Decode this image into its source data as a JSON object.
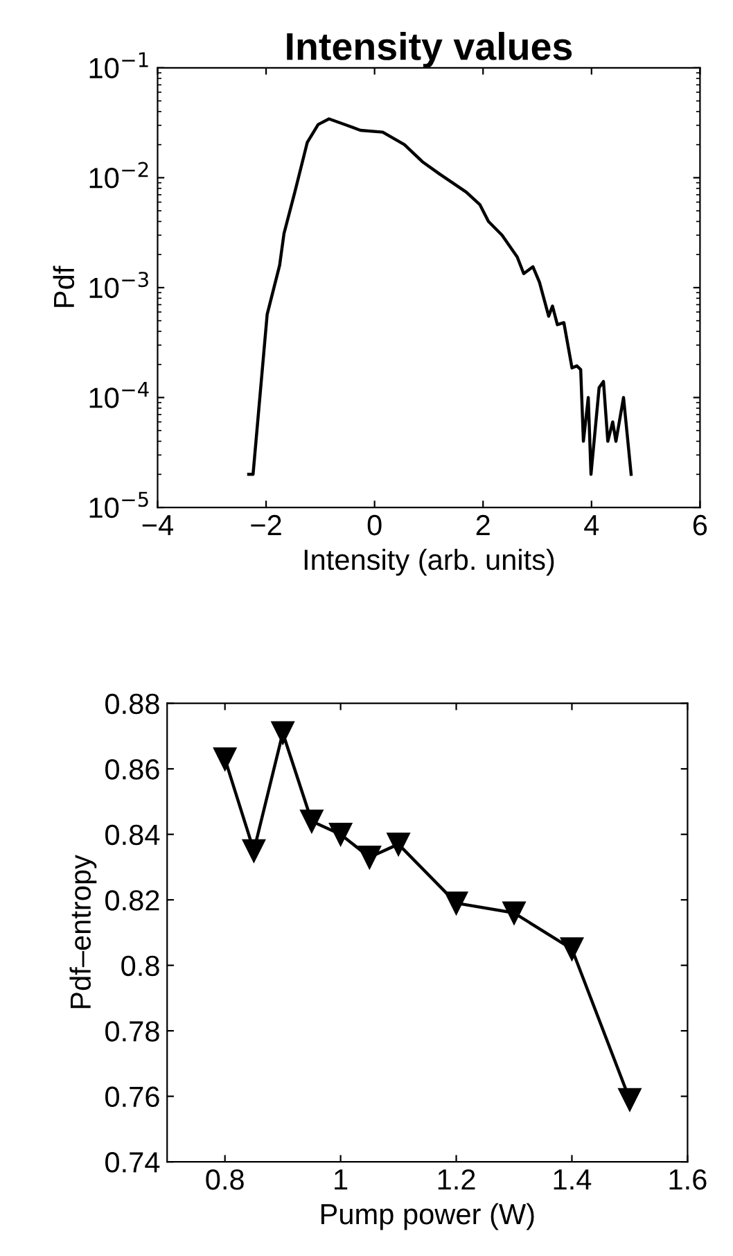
{
  "chart_data": [
    {
      "type": "line",
      "title": "Intensity values",
      "xlabel": "Intensity (arb. units)",
      "ylabel": "Pdf",
      "log": "y",
      "grid": false,
      "marker": "none",
      "line_style": "solid",
      "xlim": [
        -4,
        6
      ],
      "xticks": [
        {
          "value": -4,
          "label": "−4"
        },
        {
          "value": -2,
          "label": "−2"
        },
        0,
        2,
        4,
        6
      ],
      "ylim": [
        1e-05,
        0.1
      ],
      "yticks": [
        {
          "value": 1e-05,
          "label": "10$^{−5}$"
        },
        {
          "value": 0.0001,
          "label": "10$^{−4}$"
        },
        {
          "value": 0.001,
          "label": "10$^{−3}$"
        },
        {
          "value": 0.01,
          "label": "10$^{−2}$"
        },
        {
          "value": 0.1,
          "label": "10$^{−1}$"
        }
      ],
      "series": [
        {
          "color": "#000000",
          "x": [
            -2.32,
            -2.24,
            -1.98,
            -1.75,
            -1.67,
            -1.47,
            -1.24,
            -1.04,
            -0.84,
            -0.51,
            -0.26,
            0.15,
            0.55,
            0.88,
            1.2,
            1.69,
            1.94,
            2.1,
            2.35,
            2.63,
            2.75,
            2.92,
            3.04,
            3.21,
            3.28,
            3.37,
            3.49,
            3.64,
            3.73,
            3.8,
            3.85,
            3.94,
            3.99,
            4.14,
            4.22,
            4.3,
            4.39,
            4.45,
            4.59,
            4.73
          ],
          "values": [
            2e-05,
            2e-05,
            0.00057,
            0.0016,
            0.0031,
            0.0074,
            0.021,
            0.0305,
            0.0343,
            0.03,
            0.027,
            0.026,
            0.02,
            0.014,
            0.0108,
            0.0074,
            0.0057,
            0.004,
            0.003,
            0.0019,
            0.00134,
            0.00155,
            0.00112,
            0.00055,
            0.00068,
            0.00046,
            0.00048,
            0.000186,
            0.000194,
            0.00018,
            4e-05,
            0.0001,
            2e-05,
            0.000123,
            0.00014,
            4e-05,
            6e-05,
            4e-05,
            0.0001,
            2e-05
          ]
        }
      ]
    },
    {
      "type": "line",
      "xlabel": "Pump power (W)",
      "ylabel": "Pdf–entropy",
      "grid": false,
      "marker": "triangle",
      "line_style": "solid",
      "xlim": [
        0.7,
        1.6
      ],
      "xticks": [
        0.8,
        1,
        1.2,
        1.4,
        1.6
      ],
      "ylim": [
        0.74,
        0.88
      ],
      "yticks": [
        0.74,
        0.76,
        0.78,
        0.8,
        0.82,
        0.84,
        0.86,
        0.88
      ],
      "series": [
        {
          "color": "#000000",
          "x": [
            0.8,
            0.85,
            0.9,
            0.95,
            1.0,
            1.05,
            1.1,
            1.2,
            1.3,
            1.4,
            1.5
          ],
          "values": [
            0.863,
            0.835,
            0.871,
            0.844,
            0.84,
            0.833,
            0.837,
            0.819,
            0.816,
            0.805,
            0.759
          ]
        }
      ]
    }
  ]
}
